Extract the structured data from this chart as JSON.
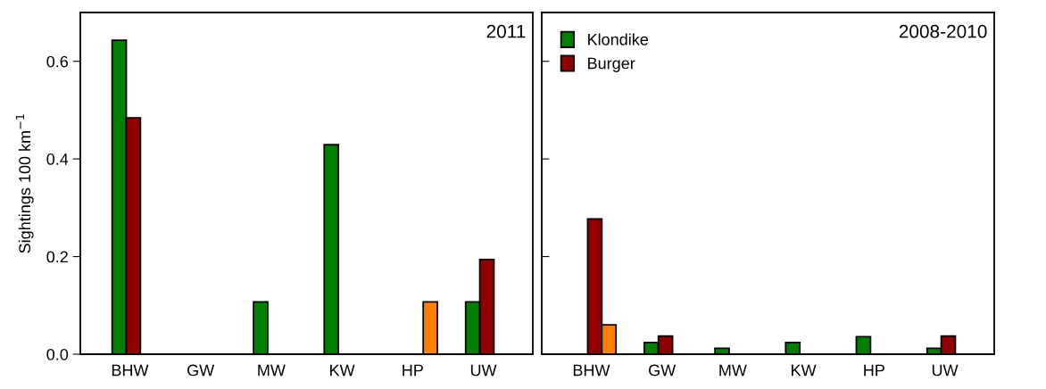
{
  "chart_data": [
    {
      "type": "bar",
      "ylabel": "Sightings 100 km$^{−1}$",
      "annotations": [
        "2011"
      ],
      "categories": [
        "BHW",
        "GW",
        "MW",
        "KW",
        "HP",
        "UW"
      ],
      "ylim": [
        0,
        0.7
      ],
      "yticks": [
        {
          "value": 0,
          "label": "0.0"
        },
        0.2,
        0.4,
        0.6
      ],
      "series": [
        {
          "color": "#008000",
          "values": [
            0.643,
            null,
            0.107,
            0.429,
            null,
            0.107
          ]
        },
        {
          "color": "#900000",
          "values": [
            0.484,
            null,
            null,
            null,
            null,
            0.194
          ]
        },
        {
          "color": "#ff8000",
          "values": [
            null,
            null,
            null,
            null,
            0.107,
            null
          ]
        }
      ]
    },
    {
      "type": "bar",
      "annotations": [
        "2008-2010"
      ],
      "categories": [
        "BHW",
        "GW",
        "MW",
        "KW",
        "HP",
        "UW"
      ],
      "ylim": [
        0,
        0.7
      ],
      "yticks": [
        0,
        0.2,
        0.4,
        0.6
      ],
      "tick_labels": "x",
      "legend": "top left",
      "series": [
        {
          "name": "Klondike",
          "color": "#008000",
          "values": [
            null,
            0.024,
            0.012,
            0.024,
            0.036,
            0.012
          ]
        },
        {
          "name": "Burger",
          "color": "#900000",
          "values": [
            0.277,
            0.037,
            null,
            null,
            null,
            0.037
          ]
        },
        {
          "color": "#ff8000",
          "values": [
            0.06,
            null,
            null,
            null,
            null,
            null
          ]
        }
      ]
    }
  ]
}
